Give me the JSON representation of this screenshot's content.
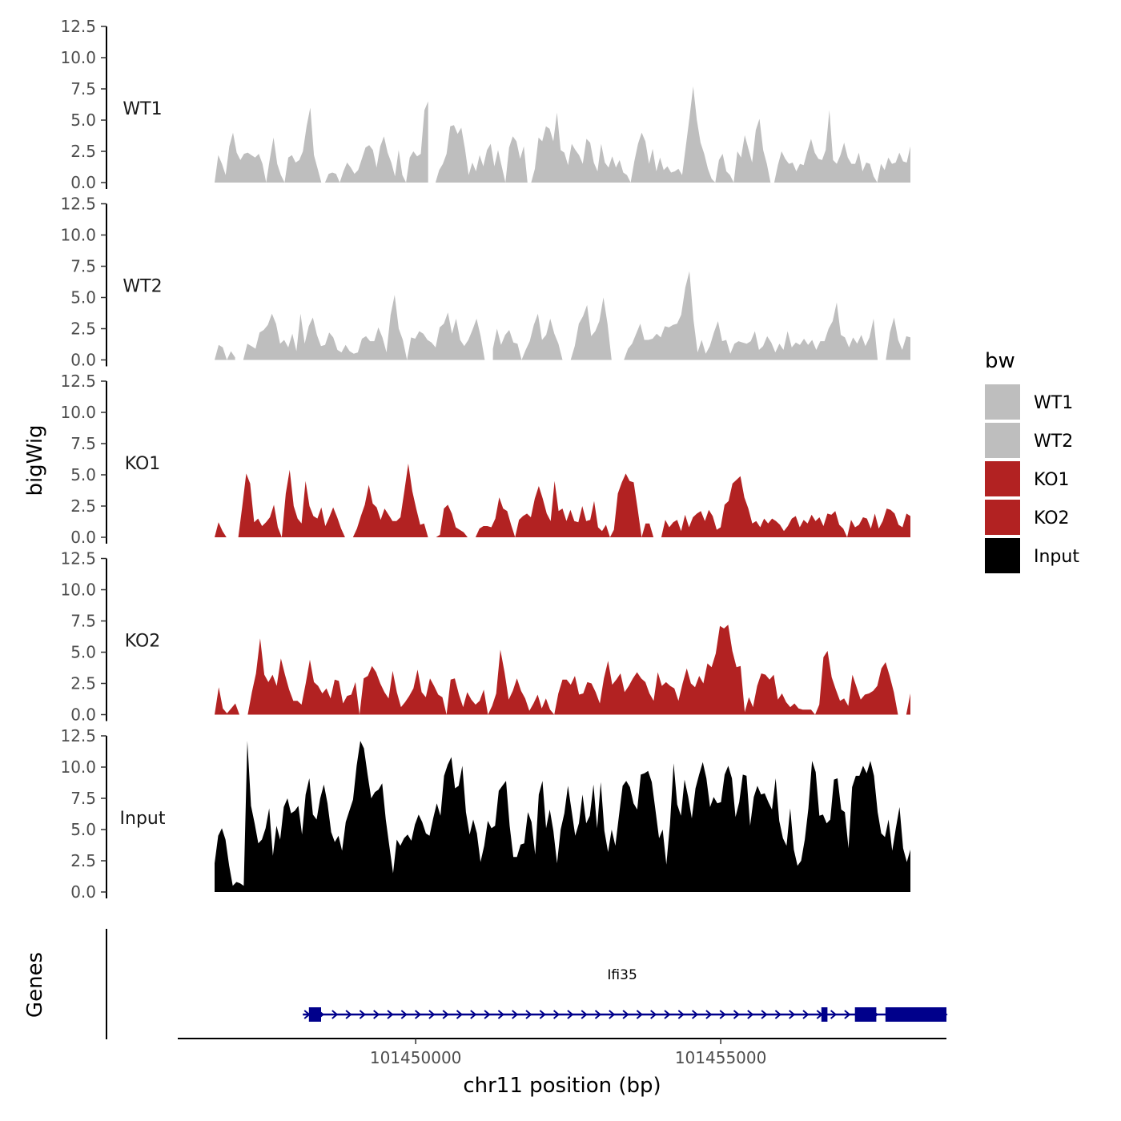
{
  "chart_data": {
    "type": "area",
    "chromosome": "chr11",
    "xlabel": "chr11 position (bp)",
    "ylabel": "bigWig",
    "genes_label": "Genes",
    "xlim": [
      101446100,
      101458700
    ],
    "x_ticks": [
      101450000,
      101455000
    ],
    "x_tick_labels": [
      "101450000",
      "101455000"
    ],
    "ylim": [
      0,
      12.5
    ],
    "y_ticks": [
      0,
      2.5,
      5,
      7.5,
      10,
      12.5
    ],
    "y_tick_labels": [
      "0.0",
      "2.5",
      "5.0",
      "7.5",
      "10.0",
      "12.5"
    ],
    "legend": {
      "title": "bw",
      "entries": [
        {
          "name": "WT1",
          "color": "#bebebe"
        },
        {
          "name": "WT2",
          "color": "#bebebe"
        },
        {
          "name": "KO1",
          "color": "#b22222"
        },
        {
          "name": "KO2",
          "color": "#b22222"
        },
        {
          "name": "Input",
          "color": "#000000"
        }
      ]
    },
    "series": [
      {
        "name": "WT1",
        "color": "#bebebe",
        "values": [
          0,
          2.2,
          1.5,
          0.6,
          2.9,
          4,
          2.4,
          1.8,
          2.3,
          2.4,
          2.2,
          2,
          2.3,
          1.5,
          0,
          1.9,
          3.6,
          1.5,
          0.6,
          0,
          2,
          2.2,
          1.6,
          1.8,
          2.5,
          4.5,
          6,
          2.2,
          1.1,
          0,
          0,
          0.7,
          0.8,
          0.7,
          0,
          0.9,
          1.6,
          1.2,
          0.7,
          1,
          1.9,
          2.8,
          3,
          2.6,
          1.2,
          2.9,
          3.7,
          2.4,
          1.6,
          0.5,
          2.6,
          0.6,
          0,
          2,
          2.5,
          2.1,
          2.3,
          5.8,
          6.5,
          null,
          0,
          1,
          1.5,
          2.3,
          4.5,
          4.6,
          3.9,
          4.4,
          2.7,
          0.6,
          1.6,
          0.9,
          2.2,
          1.3,
          2.6,
          3.1,
          1.3,
          2.6,
          1.3,
          0,
          2.8,
          3.7,
          3.3,
          1.9,
          2.9,
          0,
          0,
          1.1,
          3.6,
          3.3,
          4.5,
          4.3,
          3.3,
          5.6,
          2.6,
          2.4,
          1.4,
          3.1,
          2.6,
          2.2,
          1.5,
          3.5,
          3.2,
          1.6,
          0.9,
          3.1,
          1.6,
          1.2,
          2.1,
          1.2,
          1.8,
          0.8,
          0.6,
          0,
          1.7,
          3.1,
          4,
          3.3,
          1.5,
          2.7,
          0.9,
          2,
          1,
          1.3,
          0.8,
          0.9,
          1.1,
          0.6,
          2.9,
          5.2,
          7.7,
          5,
          3.2,
          2.3,
          1.1,
          0.3,
          0,
          1.8,
          2.3,
          0.9,
          0.6,
          0,
          2.5,
          2,
          3.8,
          2.7,
          1.6,
          4.2,
          5.1,
          2.6,
          1.5,
          0,
          0,
          1.4,
          2.5,
          1.9,
          1.5,
          1.6,
          0.9,
          1.5,
          1.4,
          2.5,
          3.5,
          2.4,
          1.9,
          1.8,
          2.6,
          5.8,
          1.8,
          1.5,
          2.2,
          3.2,
          2,
          1.5,
          1.5,
          2.4,
          0.9,
          1.6,
          1.5,
          0.5,
          0,
          1.5,
          1,
          2,
          1.5,
          1.6,
          2.4,
          1.7,
          1.6,
          2.9
        ]
      },
      {
        "name": "WT2",
        "color": "#bebebe",
        "values": [
          0,
          1.2,
          1,
          0,
          0.7,
          0.2,
          null,
          0,
          1.3,
          1.1,
          0.9,
          2.2,
          2.4,
          2.8,
          3.7,
          2.9,
          1.3,
          1.6,
          1,
          2.1,
          0.7,
          3.7,
          1.3,
          2.7,
          3.4,
          2,
          1.1,
          1.2,
          2.2,
          1.8,
          0.8,
          0.6,
          1.2,
          0.7,
          0.5,
          0.6,
          1.7,
          1.9,
          1.5,
          1.5,
          2.6,
          1.8,
          0.6,
          3.6,
          5.2,
          2.5,
          1.6,
          0,
          1.8,
          1.7,
          2.3,
          2.1,
          1.6,
          1.4,
          1,
          2.6,
          2.9,
          3.8,
          2.1,
          3.3,
          1.6,
          1.1,
          1.6,
          2.4,
          3.3,
          1.9,
          0,
          null,
          0.9,
          2.5,
          1.2,
          2,
          2.4,
          1.4,
          1.3,
          0,
          0.8,
          1.5,
          2.8,
          3.7,
          1.6,
          2,
          3.3,
          2.1,
          1.3,
          0,
          null,
          0,
          1.1,
          2.9,
          3.5,
          4.4,
          1.9,
          2.3,
          3.1,
          5,
          2.9,
          0,
          null,
          0,
          0,
          0.9,
          1.3,
          2.1,
          2.9,
          1.6,
          1.6,
          1.7,
          2.1,
          1.8,
          2.7,
          2.6,
          2.8,
          2.9,
          3.6,
          5.8,
          7.1,
          3.2,
          0.6,
          1.6,
          0.5,
          1.1,
          2.2,
          3.1,
          1.5,
          1.6,
          0.5,
          1.3,
          1.5,
          1.4,
          1.3,
          1.5,
          2.3,
          0.8,
          1.1,
          1.9,
          1.4,
          0.6,
          1.3,
          0.8,
          2.3,
          1,
          1.4,
          1.2,
          1.7,
          1.2,
          1.6,
          0.8,
          1.5,
          1.5,
          2.5,
          3.1,
          4.6,
          2,
          1.8,
          1,
          1.8,
          1.3,
          2,
          1.1,
          1.8,
          3.3,
          0,
          null,
          0,
          2.2,
          3.4,
          1.6,
          0.8,
          1.9,
          1.8
        ]
      },
      {
        "name": "KO1",
        "color": "#b22222",
        "values": [
          0,
          1.2,
          0.5,
          0,
          null,
          0,
          0,
          2.5,
          5.1,
          4.3,
          1.2,
          1.5,
          0.9,
          1.2,
          1.6,
          2.6,
          0.8,
          0,
          3.5,
          5.4,
          2.5,
          1.5,
          1.1,
          4.5,
          2.5,
          1.7,
          1.5,
          2.4,
          0.9,
          1.6,
          2.4,
          1.6,
          0.7,
          0,
          null,
          0,
          0.7,
          1.7,
          2.6,
          4.2,
          2.7,
          2.4,
          1.4,
          2.3,
          1.8,
          1.3,
          1.3,
          1.6,
          3.7,
          5.9,
          3.7,
          2.3,
          1,
          1.1,
          0,
          null,
          0,
          0.2,
          2.3,
          2.6,
          1.9,
          0.8,
          0.6,
          0.4,
          0,
          null,
          0,
          0.7,
          0.9,
          0.9,
          0.8,
          1.5,
          3.2,
          2.3,
          2.1,
          1,
          0,
          1.4,
          1.7,
          1.9,
          1.6,
          3.1,
          4.1,
          3.1,
          1.9,
          1.3,
          4.5,
          2.1,
          2.3,
          1.3,
          2.2,
          1.3,
          1.2,
          2.5,
          1.3,
          1.4,
          2.9,
          0.8,
          0.5,
          1,
          0,
          0.6,
          3.5,
          4.4,
          5.1,
          4.5,
          4.4,
          2.3,
          0,
          1.1,
          1.1,
          0,
          null,
          0,
          1.4,
          0.8,
          1.2,
          1.4,
          0.5,
          1.8,
          0.8,
          1.6,
          1.9,
          2.1,
          1.3,
          2.2,
          1.7,
          0.6,
          0.8,
          2.6,
          2.9,
          4.3,
          4.6,
          4.9,
          3.2,
          2.3,
          1.1,
          1.3,
          0.8,
          1.5,
          1.1,
          1.5,
          1.3,
          1,
          0.5,
          0.9,
          1.5,
          1.7,
          0.8,
          1.4,
          1.1,
          1.8,
          1.3,
          1.6,
          0.9,
          1.9,
          1.8,
          2.1,
          1,
          0.7,
          0,
          1.4,
          0.8,
          1,
          1.6,
          1.5,
          0.7,
          1.9,
          0.7,
          1.3,
          2.3,
          2.2,
          1.9,
          1,
          0.8,
          1.9,
          1.7
        ]
      },
      {
        "name": "KO2",
        "color": "#b22222",
        "values": [
          0,
          2.2,
          0.5,
          0.1,
          0.5,
          0.9,
          0,
          0,
          0,
          1.8,
          3.3,
          6.1,
          3.2,
          2.6,
          3.2,
          2.3,
          4.5,
          3.2,
          2,
          1.1,
          1.1,
          0.8,
          2.5,
          4.4,
          2.6,
          2.3,
          1.7,
          2.1,
          1.3,
          2.8,
          2.7,
          0.9,
          1.5,
          1.6,
          2.6,
          0,
          2.9,
          3.1,
          3.9,
          3.4,
          2.5,
          1.8,
          1.3,
          3.5,
          1.8,
          0.6,
          1,
          1.5,
          2.1,
          3.6,
          1.8,
          1.4,
          2.9,
          2.3,
          1.6,
          1.4,
          0,
          2.8,
          2.9,
          1.6,
          0.6,
          1.8,
          1.2,
          0.8,
          1.1,
          2,
          0,
          0.7,
          1.7,
          5.2,
          3.4,
          1.2,
          1.9,
          2.9,
          1.9,
          1.3,
          0.3,
          0.9,
          1.6,
          0.5,
          1.3,
          0.4,
          0,
          1.7,
          2.8,
          2.8,
          2.4,
          3.1,
          1.6,
          1.7,
          2.6,
          2.5,
          1.8,
          0.9,
          2.9,
          4.3,
          2.4,
          2.8,
          3.3,
          1.8,
          2.3,
          2.9,
          3.4,
          2.9,
          2.6,
          1.7,
          1.1,
          3.4,
          2.3,
          2.6,
          2.3,
          2.1,
          1.1,
          2.5,
          3.7,
          2.5,
          2.2,
          3.1,
          2.5,
          4.1,
          3.8,
          4.9,
          7.1,
          6.9,
          7.2,
          5.1,
          3.8,
          3.9,
          0.2,
          1.4,
          0.6,
          2.3,
          3.3,
          3.2,
          2.8,
          3.2,
          1.2,
          1.7,
          1,
          0.6,
          0.9,
          0.5,
          0.4,
          0.4,
          0.4,
          0,
          0.8,
          4.6,
          5.1,
          3,
          2,
          1.1,
          1.3,
          0.7,
          3.2,
          2.2,
          1.2,
          1.6,
          1.7,
          1.9,
          2.3,
          3.7,
          4.2,
          3.1,
          1.8,
          0,
          null,
          0,
          1.7
        ]
      },
      {
        "name": "Input",
        "color": "#000000",
        "values": [
          2.3,
          4.5,
          5.1,
          4.2,
          2.1,
          0.5,
          0.8,
          0.7,
          0.5,
          12.1,
          6.9,
          5.5,
          3.9,
          4.2,
          5.1,
          6.7,
          2.9,
          5.3,
          4.2,
          6.8,
          7.5,
          6.3,
          6.5,
          6.9,
          4.6,
          7.8,
          9.1,
          6.2,
          5.8,
          7.5,
          8.6,
          7.1,
          4.8,
          4,
          4.5,
          3.3,
          5.6,
          6.5,
          7.4,
          10.1,
          12.1,
          11.5,
          9.4,
          7.5,
          8,
          8.2,
          8.7,
          5.8,
          3.6,
          1.5,
          4.2,
          3.7,
          4.3,
          4.6,
          4.1,
          5.4,
          6.2,
          5.6,
          4.7,
          4.5,
          5.9,
          7.1,
          6.1,
          9.3,
          10.2,
          10.8,
          8.3,
          8.5,
          10.1,
          6.4,
          4.6,
          5.8,
          4.7,
          2.4,
          3.7,
          5.7,
          5.1,
          5.3,
          8.1,
          8.5,
          8.9,
          5.3,
          2.8,
          2.8,
          3.8,
          3.9,
          6.4,
          5.6,
          3,
          7.8,
          8.9,
          5.1,
          6.6,
          4.9,
          2.3,
          5,
          6.3,
          8.5,
          6.5,
          4.5,
          5.5,
          7.8,
          5.5,
          6.1,
          8.6,
          5.1,
          8.8,
          4.9,
          3.2,
          5,
          3.7,
          6.1,
          8.5,
          8.9,
          8.4,
          7.1,
          6.6,
          9.4,
          9.5,
          9.7,
          8.8,
          6.6,
          4.3,
          5,
          2.2,
          5.4,
          10.3,
          7,
          6.1,
          9,
          7.6,
          5.9,
          8.3,
          9.4,
          10.4,
          9.1,
          6.8,
          7.6,
          7.1,
          7.2,
          9.4,
          10.1,
          9.1,
          6,
          7.2,
          9.4,
          9.3,
          5.3,
          7.6,
          8.5,
          7.8,
          7.9,
          7.2,
          6.6,
          9.1,
          5.7,
          4.3,
          3.7,
          6.7,
          3.4,
          2.1,
          2.5,
          4.2,
          6.7,
          10.5,
          9.6,
          6.1,
          6.2,
          5.5,
          5.8,
          9,
          9.1,
          6.6,
          6.4,
          3.5,
          8.4,
          9.3,
          9.3,
          10.1,
          9.5,
          10.5,
          9.3,
          6.4,
          4.7,
          4.4,
          5.8,
          3.3,
          5.1,
          6.8,
          3.5,
          2.4,
          3.4
        ]
      }
    ],
    "gene_track": {
      "gene_name": "Ifi35",
      "strand": "+",
      "start": 101448150,
      "end": 101458700,
      "exons": [
        [
          101448250,
          101448450
        ],
        [
          101456650,
          101456750
        ],
        [
          101457200,
          101457550
        ],
        [
          101457700,
          101458050
        ],
        [
          101458050,
          101458700
        ]
      ],
      "color": "#00008b"
    }
  }
}
